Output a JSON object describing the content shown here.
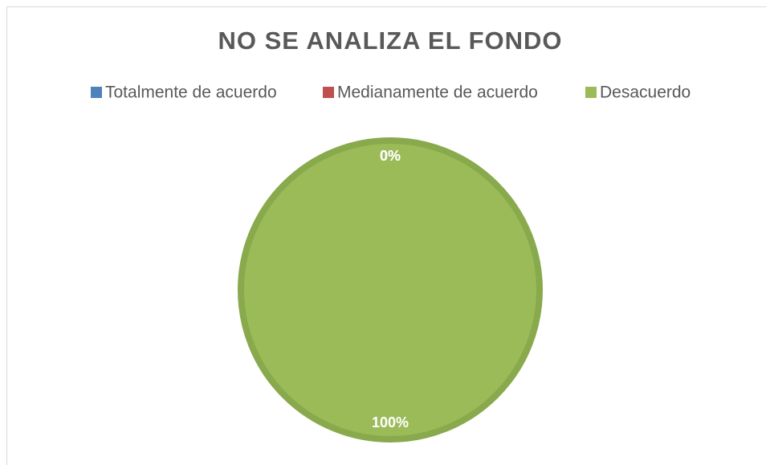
{
  "chart_data": {
    "type": "pie",
    "title": "NO SE ANALIZA EL FONDO",
    "categories": [
      "Totalmente de acuerdo",
      "Medianamente de acuerdo",
      "Desacuerdo"
    ],
    "values": [
      0,
      0,
      100
    ],
    "value_labels": [
      "0%",
      "0%",
      "100%"
    ],
    "colors": [
      "#4f81bd",
      "#c0504d",
      "#9bbb59"
    ],
    "legend": "top"
  }
}
